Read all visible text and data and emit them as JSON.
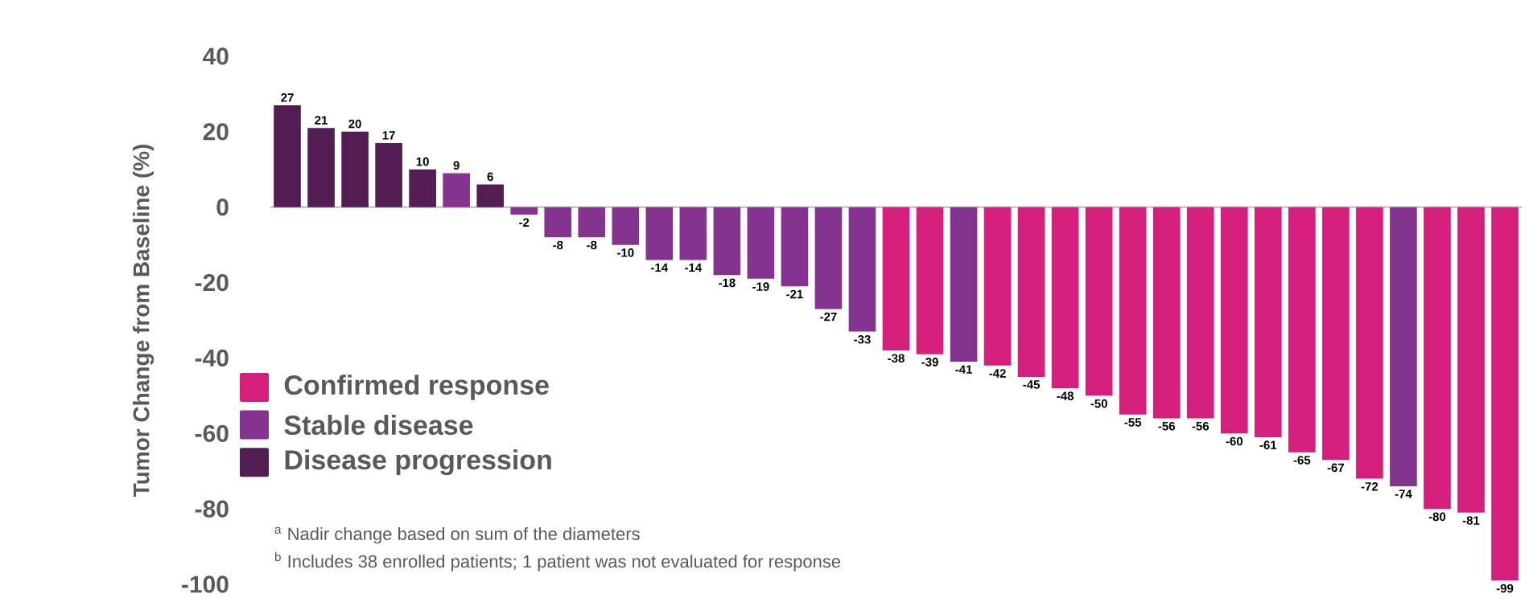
{
  "chart_data": {
    "type": "bar",
    "ylabel": "Tumor Change from Baseline (%)",
    "categories": [
      null,
      null,
      null,
      null,
      null,
      null,
      null,
      null,
      null,
      null,
      null,
      null,
      null,
      null,
      null,
      null,
      null,
      null,
      null,
      null,
      null,
      null,
      null,
      null,
      null,
      null,
      null,
      null,
      null,
      null,
      null,
      null,
      null,
      null,
      null,
      null,
      null
    ],
    "series": [
      {
        "name": "Confirmed response",
        "color": "#d41f7c",
        "values": [
          null,
          null,
          null,
          null,
          null,
          null,
          null,
          null,
          null,
          null,
          null,
          null,
          null,
          null,
          null,
          null,
          null,
          null,
          -38,
          -39,
          null,
          -42,
          -45,
          -48,
          -50,
          -55,
          -56,
          -56,
          -60,
          -61,
          -65,
          -67,
          -72,
          null,
          -80,
          -81,
          -99
        ]
      },
      {
        "name": "Stable disease",
        "color": "#84348e",
        "values": [
          null,
          null,
          null,
          null,
          null,
          9,
          null,
          -2,
          -8,
          -8,
          -10,
          -14,
          -14,
          -18,
          -19,
          -21,
          -27,
          -33,
          null,
          null,
          -41,
          null,
          null,
          null,
          null,
          null,
          null,
          null,
          null,
          null,
          null,
          null,
          null,
          -74,
          null,
          null,
          null
        ]
      },
      {
        "name": "Disease progression",
        "color": "#521d52",
        "values": [
          27,
          21,
          20,
          17,
          10,
          null,
          6,
          null,
          null,
          null,
          null,
          null,
          null,
          null,
          null,
          null,
          null,
          null,
          null,
          null,
          null,
          null,
          null,
          null,
          null,
          null,
          null,
          null,
          null,
          null,
          null,
          null,
          null,
          null,
          null,
          null,
          null
        ]
      }
    ],
    "ylim": [
      -100,
      40
    ],
    "yticks": [
      -100,
      -80,
      -60,
      -40,
      -20,
      0,
      20,
      40
    ],
    "data_labels": true,
    "legend": "left",
    "annotations": [
      "$^{a}$ Nadir change based on sum of the diameters",
      "$^{b}$ Includes 38 enrolled patients; 1 patient was not evaluated for response"
    ]
  }
}
